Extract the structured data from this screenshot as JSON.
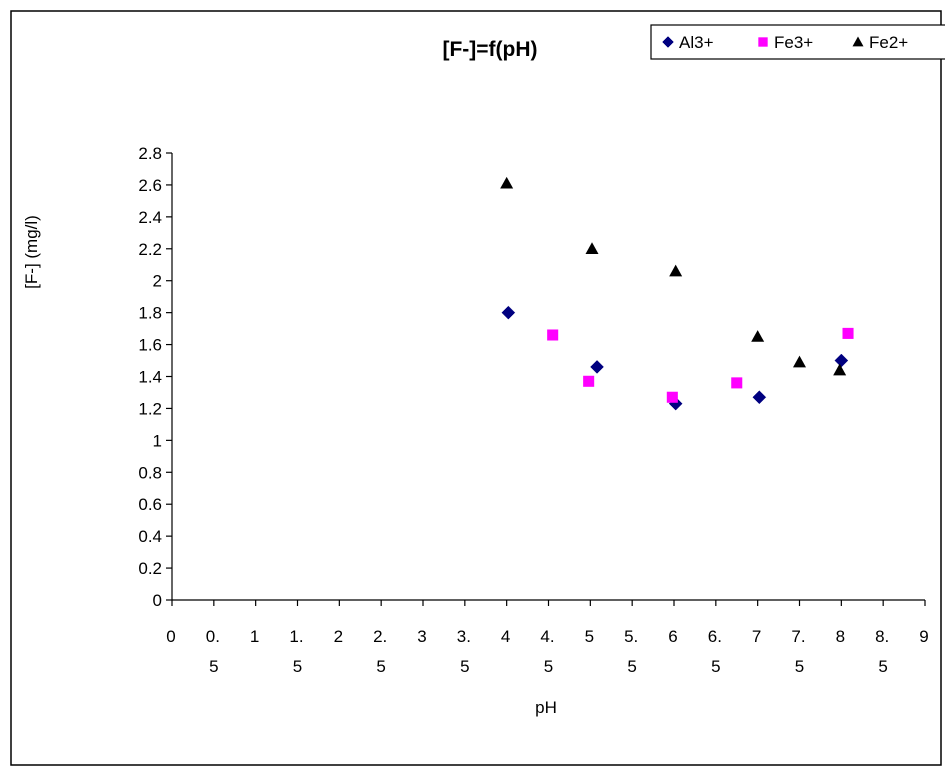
{
  "chart_data": {
    "type": "scatter",
    "title": "[F-]=f(pH)",
    "xlabel": "pH",
    "ylabel": "[F-] (mg/l)",
    "xlim": [
      0,
      9
    ],
    "ylim": [
      0,
      2.8
    ],
    "xticks": [
      {
        "v": 0,
        "l1": "0",
        "l2": ""
      },
      {
        "v": 0.5,
        "l1": "0.",
        "l2": "5"
      },
      {
        "v": 1,
        "l1": "1",
        "l2": ""
      },
      {
        "v": 1.5,
        "l1": "1.",
        "l2": "5"
      },
      {
        "v": 2,
        "l1": "2",
        "l2": ""
      },
      {
        "v": 2.5,
        "l1": "2.",
        "l2": "5"
      },
      {
        "v": 3,
        "l1": "3",
        "l2": ""
      },
      {
        "v": 3.5,
        "l1": "3.",
        "l2": "5"
      },
      {
        "v": 4,
        "l1": "4",
        "l2": ""
      },
      {
        "v": 4.5,
        "l1": "4.",
        "l2": "5"
      },
      {
        "v": 5,
        "l1": "5",
        "l2": ""
      },
      {
        "v": 5.5,
        "l1": "5.",
        "l2": "5"
      },
      {
        "v": 6,
        "l1": "6",
        "l2": ""
      },
      {
        "v": 6.5,
        "l1": "6.",
        "l2": "5"
      },
      {
        "v": 7,
        "l1": "7",
        "l2": ""
      },
      {
        "v": 7.5,
        "l1": "7.",
        "l2": "5"
      },
      {
        "v": 8,
        "l1": "8",
        "l2": ""
      },
      {
        "v": 8.5,
        "l1": "8.",
        "l2": "5"
      },
      {
        "v": 9,
        "l1": "9",
        "l2": ""
      }
    ],
    "yticks": [
      {
        "v": 0,
        "l": "0"
      },
      {
        "v": 0.2,
        "l": "0.2"
      },
      {
        "v": 0.4,
        "l": "0.4"
      },
      {
        "v": 0.6,
        "l": "0.6"
      },
      {
        "v": 0.8,
        "l": "0.8"
      },
      {
        "v": 1,
        "l": "1"
      },
      {
        "v": 1.2,
        "l": "1.2"
      },
      {
        "v": 1.4,
        "l": "1.4"
      },
      {
        "v": 1.6,
        "l": "1.6"
      },
      {
        "v": 1.8,
        "l": "1.8"
      },
      {
        "v": 2,
        "l": "2"
      },
      {
        "v": 2.2,
        "l": "2.2"
      },
      {
        "v": 2.4,
        "l": "2.4"
      },
      {
        "v": 2.6,
        "l": "2.6"
      },
      {
        "v": 2.8,
        "l": "2.8"
      }
    ],
    "grid": false,
    "legend_position": "top-right",
    "series": [
      {
        "name": "Al3+",
        "marker": "diamond",
        "color": "#000080",
        "points": [
          {
            "x": 4.02,
            "y": 1.8
          },
          {
            "x": 5.08,
            "y": 1.46
          },
          {
            "x": 6.02,
            "y": 1.23
          },
          {
            "x": 7.02,
            "y": 1.27
          },
          {
            "x": 8.0,
            "y": 1.5
          }
        ]
      },
      {
        "name": "Fe3+",
        "marker": "square",
        "color": "#ff00ff",
        "points": [
          {
            "x": 4.55,
            "y": 1.66
          },
          {
            "x": 4.98,
            "y": 1.37
          },
          {
            "x": 5.98,
            "y": 1.27
          },
          {
            "x": 6.75,
            "y": 1.36
          },
          {
            "x": 8.08,
            "y": 1.67
          }
        ]
      },
      {
        "name": "Fe2+",
        "marker": "triangle",
        "color": "#000000",
        "points": [
          {
            "x": 4.0,
            "y": 2.61
          },
          {
            "x": 5.02,
            "y": 2.2
          },
          {
            "x": 6.02,
            "y": 2.06
          },
          {
            "x": 7.0,
            "y": 1.65
          },
          {
            "x": 7.5,
            "y": 1.49
          },
          {
            "x": 7.98,
            "y": 1.44
          }
        ]
      }
    ]
  }
}
